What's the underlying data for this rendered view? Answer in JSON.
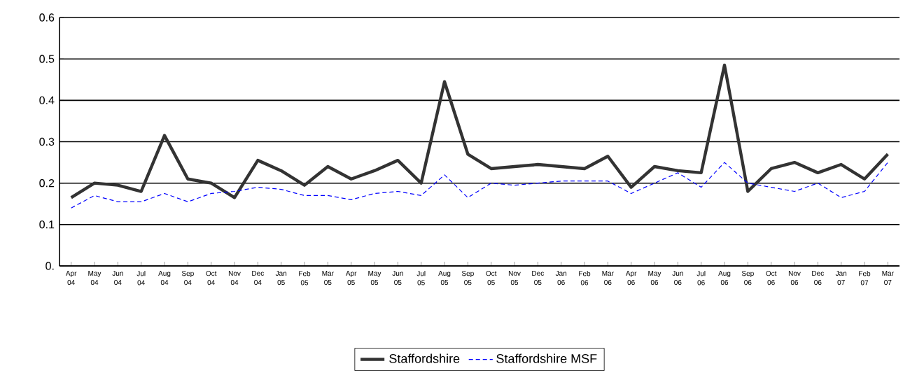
{
  "chart_data": {
    "type": "line",
    "categories": [
      "Apr 04",
      "May 04",
      "Jun 04",
      "Jul 04",
      "Aug 04",
      "Sep 04",
      "Oct 04",
      "Nov 04",
      "Dec 04",
      "Jan 05",
      "Feb 05",
      "Mar 05",
      "Apr 05",
      "May 05",
      "Jun 05",
      "Jul 05",
      "Aug 05",
      "Sep 05",
      "Oct 05",
      "Nov 05",
      "Dec 05",
      "Jan 06",
      "Feb 06",
      "Mar 06",
      "Apr 06",
      "May 06",
      "Jun 06",
      "Jul 06",
      "Aug 06",
      "Sep 06",
      "Oct 06",
      "Nov 06",
      "Dec 06",
      "Jan 07",
      "Feb 07",
      "Mar 07"
    ],
    "series": [
      {
        "name": "Staffordshire",
        "color": "#333333",
        "line_style": "solid",
        "values": [
          0.165,
          0.2,
          0.195,
          0.18,
          0.315,
          0.21,
          0.2,
          0.165,
          0.255,
          0.23,
          0.195,
          0.24,
          0.21,
          0.23,
          0.255,
          0.2,
          0.445,
          0.27,
          0.235,
          0.24,
          0.245,
          0.24,
          0.235,
          0.265,
          0.19,
          0.24,
          0.23,
          0.225,
          0.485,
          0.18,
          0.235,
          0.25,
          0.225,
          0.245,
          0.21,
          0.27
        ]
      },
      {
        "name": "Staffordshire MSF",
        "color": "#0000ff",
        "line_style": "dashed",
        "values": [
          0.14,
          0.17,
          0.155,
          0.155,
          0.175,
          0.155,
          0.175,
          0.18,
          0.19,
          0.185,
          0.17,
          0.17,
          0.16,
          0.175,
          0.18,
          0.17,
          0.22,
          0.165,
          0.2,
          0.195,
          0.2,
          0.205,
          0.205,
          0.205,
          0.175,
          0.2,
          0.225,
          0.19,
          0.25,
          0.2,
          0.19,
          0.18,
          0.2,
          0.165,
          0.18,
          0.25
        ]
      }
    ],
    "ylim": [
      0,
      0.6
    ],
    "yticks": [
      {
        "value": 0,
        "label": "0."
      },
      0.1,
      0.2,
      0.3,
      0.4,
      0.5,
      0.6
    ],
    "grid": "y",
    "legend": "bottom",
    "marker": "none"
  }
}
